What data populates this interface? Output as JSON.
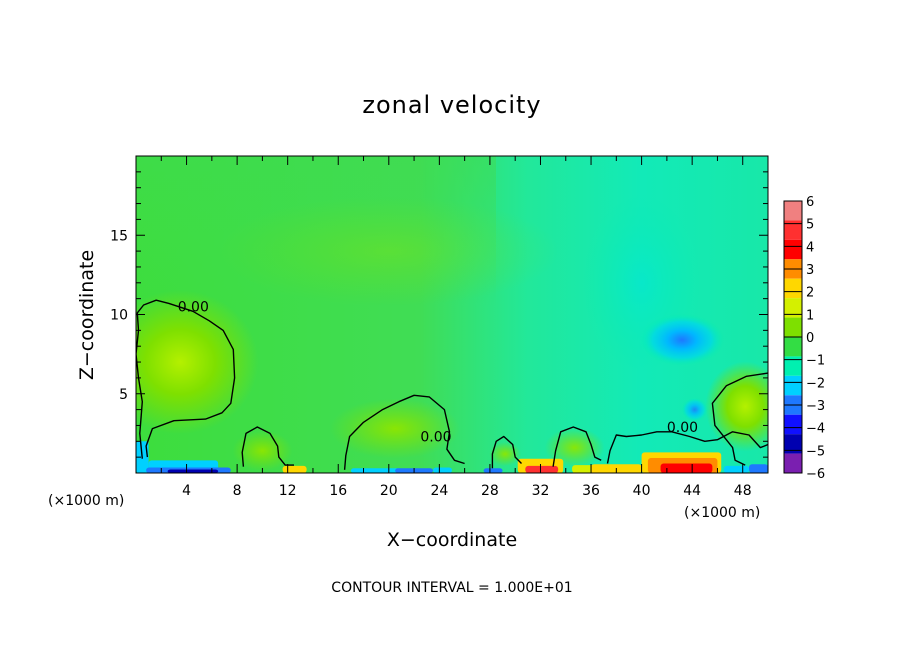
{
  "chart_data": {
    "type": "heatmap",
    "title": "zonal velocity",
    "xlabel": "X−coordinate",
    "ylabel": "Z−coordinate",
    "x_units_note": "(×1000 m)",
    "z_units_note": "(×1000 m)",
    "footer": "CONTOUR INTERVAL = 1.000E+01",
    "xlim": [
      0,
      50
    ],
    "ylim": [
      0,
      20
    ],
    "x_ticks": [
      4,
      8,
      12,
      16,
      20,
      24,
      28,
      32,
      36,
      40,
      44,
      48
    ],
    "x_tick_labels": [
      "4",
      "8",
      "12",
      "16",
      "20",
      "24",
      "28",
      "32",
      "36",
      "40",
      "44",
      "48"
    ],
    "y_ticks": [
      5,
      10,
      15
    ],
    "y_tick_labels": [
      "5",
      "10",
      "15"
    ],
    "colorbar": {
      "levels": [
        6,
        5,
        4,
        3,
        2,
        1,
        0,
        -1,
        -2,
        -3,
        -4,
        -5,
        -6
      ],
      "labels": [
        "6",
        "5",
        "4",
        "3",
        "2",
        "1",
        "0",
        "−1",
        "−2",
        "−3",
        "−4",
        "−5",
        "−6"
      ],
      "colors": [
        "#f08080",
        "#ff3030",
        "#ff0000",
        "#ff8c00",
        "#ffd700",
        "#d4f000",
        "#7ee000",
        "#33dd44",
        "#00f0b0",
        "#00d0ff",
        "#1e78ff",
        "#1010ff",
        "#0000b0",
        "#7a1fb0"
      ]
    },
    "contour_labels": [
      {
        "text": "0.00",
        "x": 3.3,
        "z": 10.2
      },
      {
        "text": "0.00",
        "x": 22.5,
        "z": 2.0
      },
      {
        "text": "0.00",
        "x": 42.0,
        "z": 2.6
      }
    ],
    "zero_contours": [
      [
        [
          0.5,
          0.9
        ],
        [
          0.3,
          2.5
        ],
        [
          0.5,
          4.5
        ],
        [
          0.2,
          6.0
        ],
        [
          0.0,
          7.5
        ],
        [
          0.2,
          9.0
        ],
        [
          0.1,
          10.1
        ],
        [
          0.6,
          10.6
        ],
        [
          1.6,
          10.9
        ],
        [
          2.6,
          10.7
        ],
        [
          4.5,
          10.2
        ],
        [
          5.8,
          9.6
        ],
        [
          6.9,
          9.0
        ],
        [
          7.7,
          7.8
        ],
        [
          7.8,
          6.0
        ],
        [
          7.5,
          4.4
        ],
        [
          6.8,
          3.8
        ],
        [
          5.5,
          3.4
        ],
        [
          3.0,
          3.3
        ],
        [
          1.3,
          2.8
        ],
        [
          0.8,
          1.7
        ],
        [
          0.9,
          1.0
        ]
      ],
      [
        [
          8.5,
          0.4
        ],
        [
          8.4,
          1.3
        ],
        [
          8.7,
          2.5
        ],
        [
          9.6,
          2.9
        ],
        [
          10.6,
          2.5
        ],
        [
          11.2,
          1.7
        ],
        [
          11.3,
          1.0
        ],
        [
          11.8,
          0.5
        ],
        [
          12.5,
          0.5
        ]
      ],
      [
        [
          16.5,
          0.2
        ],
        [
          16.6,
          1.1
        ],
        [
          16.9,
          2.3
        ],
        [
          18.0,
          3.2
        ],
        [
          19.5,
          4.0
        ],
        [
          20.8,
          4.5
        ],
        [
          22.0,
          4.9
        ],
        [
          23.2,
          4.8
        ],
        [
          24.4,
          4.0
        ],
        [
          24.8,
          2.6
        ],
        [
          24.6,
          1.5
        ],
        [
          25.2,
          0.8
        ],
        [
          26.0,
          0.6
        ]
      ],
      [
        [
          28.2,
          0.3
        ],
        [
          28.2,
          1.2
        ],
        [
          28.5,
          2.0
        ],
        [
          29.1,
          2.3
        ],
        [
          29.8,
          1.8
        ],
        [
          30.0,
          1.0
        ],
        [
          30.5,
          0.6
        ]
      ],
      [
        [
          33.0,
          0.4
        ],
        [
          33.2,
          1.4
        ],
        [
          33.6,
          2.6
        ],
        [
          34.6,
          2.9
        ],
        [
          35.6,
          2.6
        ],
        [
          36.0,
          1.8
        ],
        [
          36.3,
          1.0
        ],
        [
          36.8,
          0.8
        ]
      ],
      [
        [
          37.3,
          0.6
        ],
        [
          37.5,
          1.4
        ],
        [
          38.0,
          2.4
        ],
        [
          38.8,
          2.3
        ],
        [
          40.0,
          2.4
        ],
        [
          41.2,
          2.6
        ],
        [
          42.4,
          2.6
        ],
        [
          43.8,
          2.3
        ],
        [
          45.0,
          2.0
        ],
        [
          46.0,
          2.1
        ],
        [
          47.2,
          2.6
        ],
        [
          48.5,
          2.4
        ],
        [
          49.4,
          1.6
        ],
        [
          50.0,
          1.8
        ]
      ],
      [
        [
          50.0,
          6.3
        ],
        [
          48.3,
          6.1
        ],
        [
          46.7,
          5.5
        ],
        [
          45.6,
          4.4
        ],
        [
          45.8,
          3.0
        ],
        [
          46.6,
          2.2
        ],
        [
          47.2,
          1.6
        ],
        [
          47.4,
          0.8
        ],
        [
          48.2,
          0.5
        ]
      ]
    ]
  }
}
